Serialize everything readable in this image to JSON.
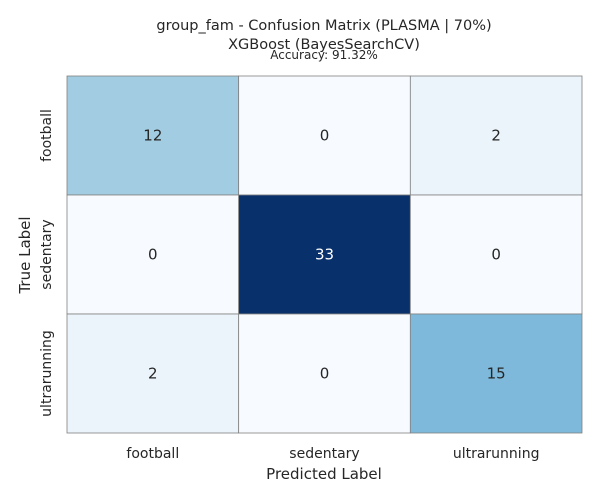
{
  "chart_data": {
    "type": "heatmap",
    "title_line1": "group_fam - Confusion Matrix (PLASMA | 70%)",
    "title_line2": "XGBoost (BayesSearchCV)",
    "subtitle": "Accuracy: 91.32%",
    "xlabel": "Predicted Label",
    "ylabel": "True Label",
    "x_categories": [
      "football",
      "sedentary",
      "ultrarunning"
    ],
    "y_categories": [
      "football",
      "sedentary",
      "ultrarunning"
    ],
    "matrix": [
      [
        12,
        0,
        2
      ],
      [
        0,
        33,
        0
      ],
      [
        2,
        0,
        15
      ]
    ],
    "colormap": "Blues",
    "value_range": [
      0,
      33
    ],
    "colorbar": false,
    "grid_line_color": "#808080"
  }
}
